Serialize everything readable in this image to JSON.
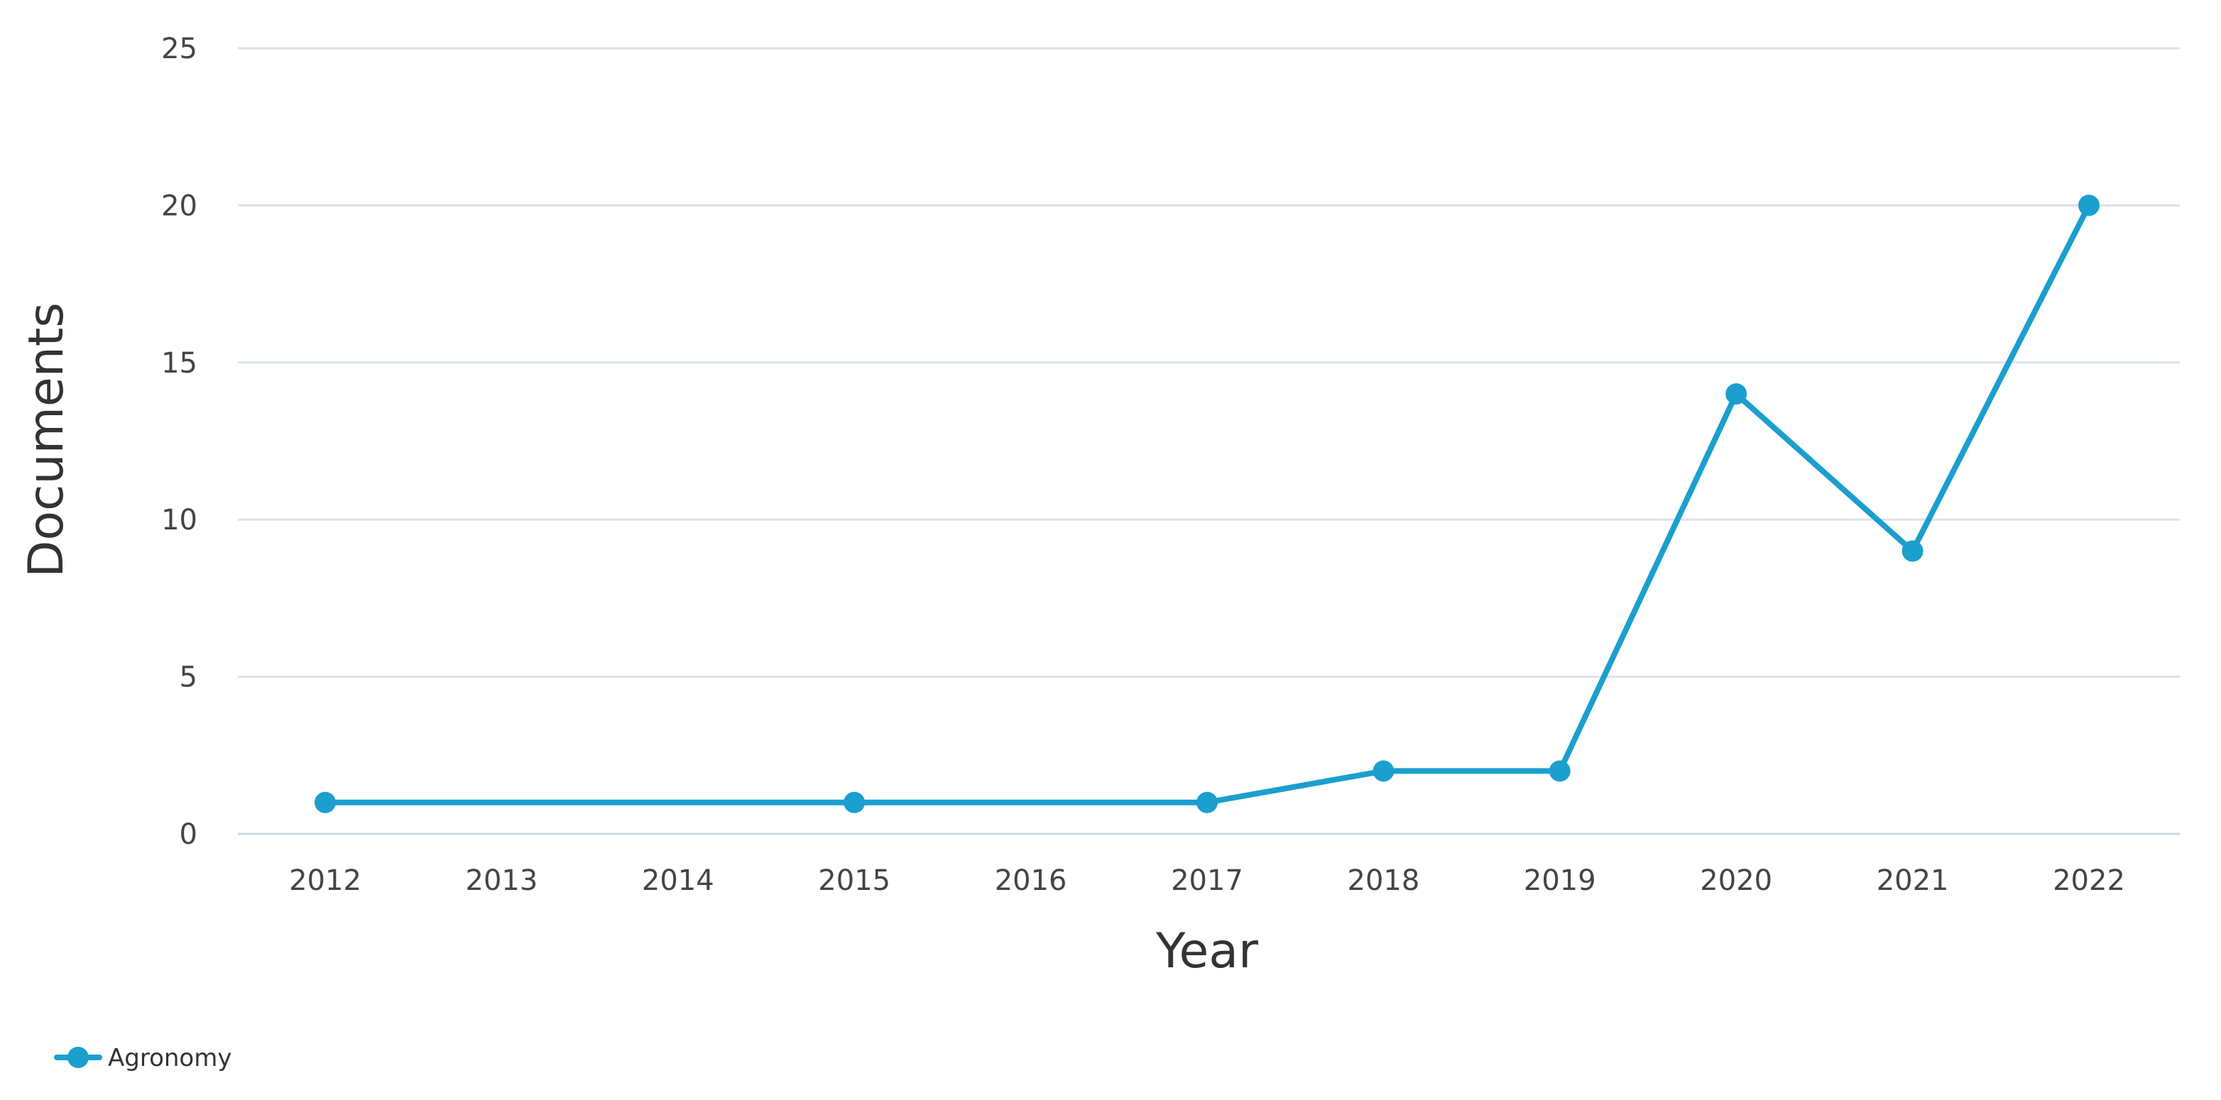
{
  "chart_data": {
    "type": "line",
    "title": "",
    "xlabel": "Year",
    "ylabel": "Documents",
    "x": [
      2012,
      2013,
      2014,
      2015,
      2016,
      2017,
      2018,
      2019,
      2020,
      2021,
      2022
    ],
    "x_tick_labels": [
      "2012",
      "2013",
      "2014",
      "2015",
      "2016",
      "2017",
      "2018",
      "2019",
      "2020",
      "2021",
      "2022"
    ],
    "y_ticks": [
      0,
      5,
      10,
      15,
      20,
      25
    ],
    "y_tick_labels": [
      "0",
      "5",
      "10",
      "15",
      "20",
      "25"
    ],
    "ylim": [
      0,
      25
    ],
    "grid": true,
    "legend_position": "bottom-left",
    "series": [
      {
        "name": "Agronomy",
        "color": "#1b9fcf",
        "points": [
          {
            "x": 2012,
            "y": 1
          },
          {
            "x": 2015,
            "y": 1
          },
          {
            "x": 2017,
            "y": 1
          },
          {
            "x": 2018,
            "y": 2
          },
          {
            "x": 2019,
            "y": 2
          },
          {
            "x": 2020,
            "y": 14
          },
          {
            "x": 2021,
            "y": 9
          },
          {
            "x": 2022,
            "y": 20
          }
        ]
      }
    ]
  }
}
